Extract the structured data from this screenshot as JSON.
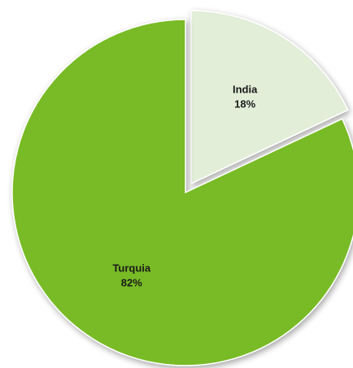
{
  "chart_data": {
    "type": "pie",
    "title": "",
    "slices": [
      {
        "label": "India",
        "value": 18,
        "value_label": "18%",
        "color": "#e2eed8",
        "exploded": true
      },
      {
        "label": "Turquia",
        "value": 82,
        "value_label": "82%",
        "color": "#78bb26",
        "exploded": false
      }
    ],
    "start_angle_deg": 0,
    "direction": "clockwise",
    "legend": "none",
    "slice_border_color": "#ffffff",
    "shadow": true
  }
}
